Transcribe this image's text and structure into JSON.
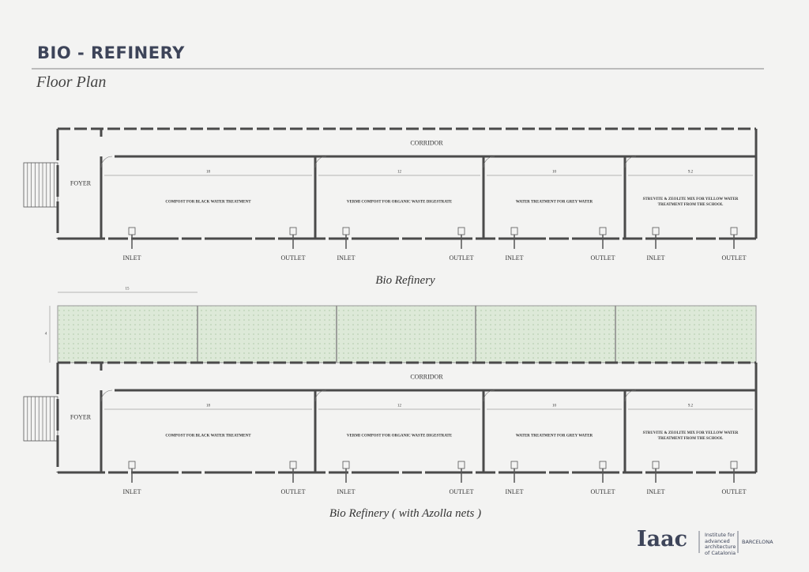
{
  "header": {
    "title": "BIO - REFINERY",
    "subtitle": "Floor Plan"
  },
  "plans": [
    {
      "corridor": "CORRIDOR",
      "foyer": "FOYER",
      "rooms": [
        {
          "dimension": "18",
          "label": "COMPOST FOR BLACK WATER TREATMENT",
          "inlet": "INLET",
          "outlet": "OUTLET"
        },
        {
          "dimension": "12",
          "label": "VERMI COMPOST FOR ORGANIC WASTE DIGESTRATE",
          "inlet": "INLET",
          "outlet": "OUTLET"
        },
        {
          "dimension": "10",
          "label": "WATER TREATMENT FOR GREY WATER",
          "inlet": "INLET",
          "outlet": "OUTLET"
        },
        {
          "dimension": "9.2",
          "label": "STRUVITE & ZEOLITE MIX FOR YELLOW WATER TREATMENT FROM THE SCHOOL",
          "inlet": "INLET",
          "outlet": "OUTLET"
        }
      ],
      "caption": "Bio Refinery"
    },
    {
      "corridor": "CORRIDOR",
      "foyer": "FOYER",
      "azolla": {
        "width": "15",
        "depth": "4"
      },
      "rooms": [
        {
          "dimension": "18",
          "label": "COMPOST FOR BLACK WATER TREATMENT",
          "inlet": "INLET",
          "outlet": "OUTLET"
        },
        {
          "dimension": "12",
          "label": "VERMI COMPOST FOR ORGANIC WASTE DIGESTRATE",
          "inlet": "INLET",
          "outlet": "OUTLET"
        },
        {
          "dimension": "10",
          "label": "WATER TREATMENT FOR GREY WATER",
          "inlet": "INLET",
          "outlet": "OUTLET"
        },
        {
          "dimension": "9.2",
          "label": "STRUVITE & ZEOLITE MIX FOR YELLOW WATER TREATMENT FROM THE SCHOOL",
          "inlet": "INLET",
          "outlet": "OUTLET"
        }
      ],
      "caption": "Bio Refinery ( with Azolla nets )"
    }
  ],
  "logo": {
    "mark": "Iaac",
    "institute": "Institute for advanced architecture of Catalonia",
    "city": "BARCELONA"
  }
}
